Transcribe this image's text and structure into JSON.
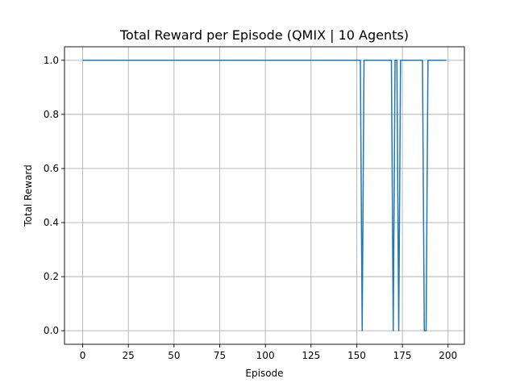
{
  "chart_data": {
    "type": "line",
    "title": "Total Reward per Episode (QMIX | 10 Agents)",
    "xlabel": "Episode",
    "ylabel": "Total Reward",
    "xlim": [
      -9.95,
      208.95
    ],
    "ylim": [
      -0.05,
      1.05
    ],
    "xticks": [
      0,
      25,
      50,
      75,
      100,
      125,
      150,
      175,
      200
    ],
    "xtick_labels": [
      "0",
      "25",
      "50",
      "75",
      "100",
      "125",
      "150",
      "175",
      "200"
    ],
    "yticks": [
      0.0,
      0.2,
      0.4,
      0.6,
      0.8,
      1.0
    ],
    "ytick_labels": [
      "0.0",
      "0.2",
      "0.4",
      "0.6",
      "0.8",
      "1.0"
    ],
    "grid": true,
    "series": [
      {
        "color": "#1f77b4",
        "x": [
          0,
          152,
          153,
          154,
          169,
          170,
          171,
          172,
          173,
          174,
          186,
          187,
          188,
          189,
          199
        ],
        "y": [
          1,
          1,
          0,
          1,
          1,
          0,
          1,
          1,
          0,
          1,
          1,
          0,
          0,
          1,
          1
        ]
      }
    ]
  }
}
